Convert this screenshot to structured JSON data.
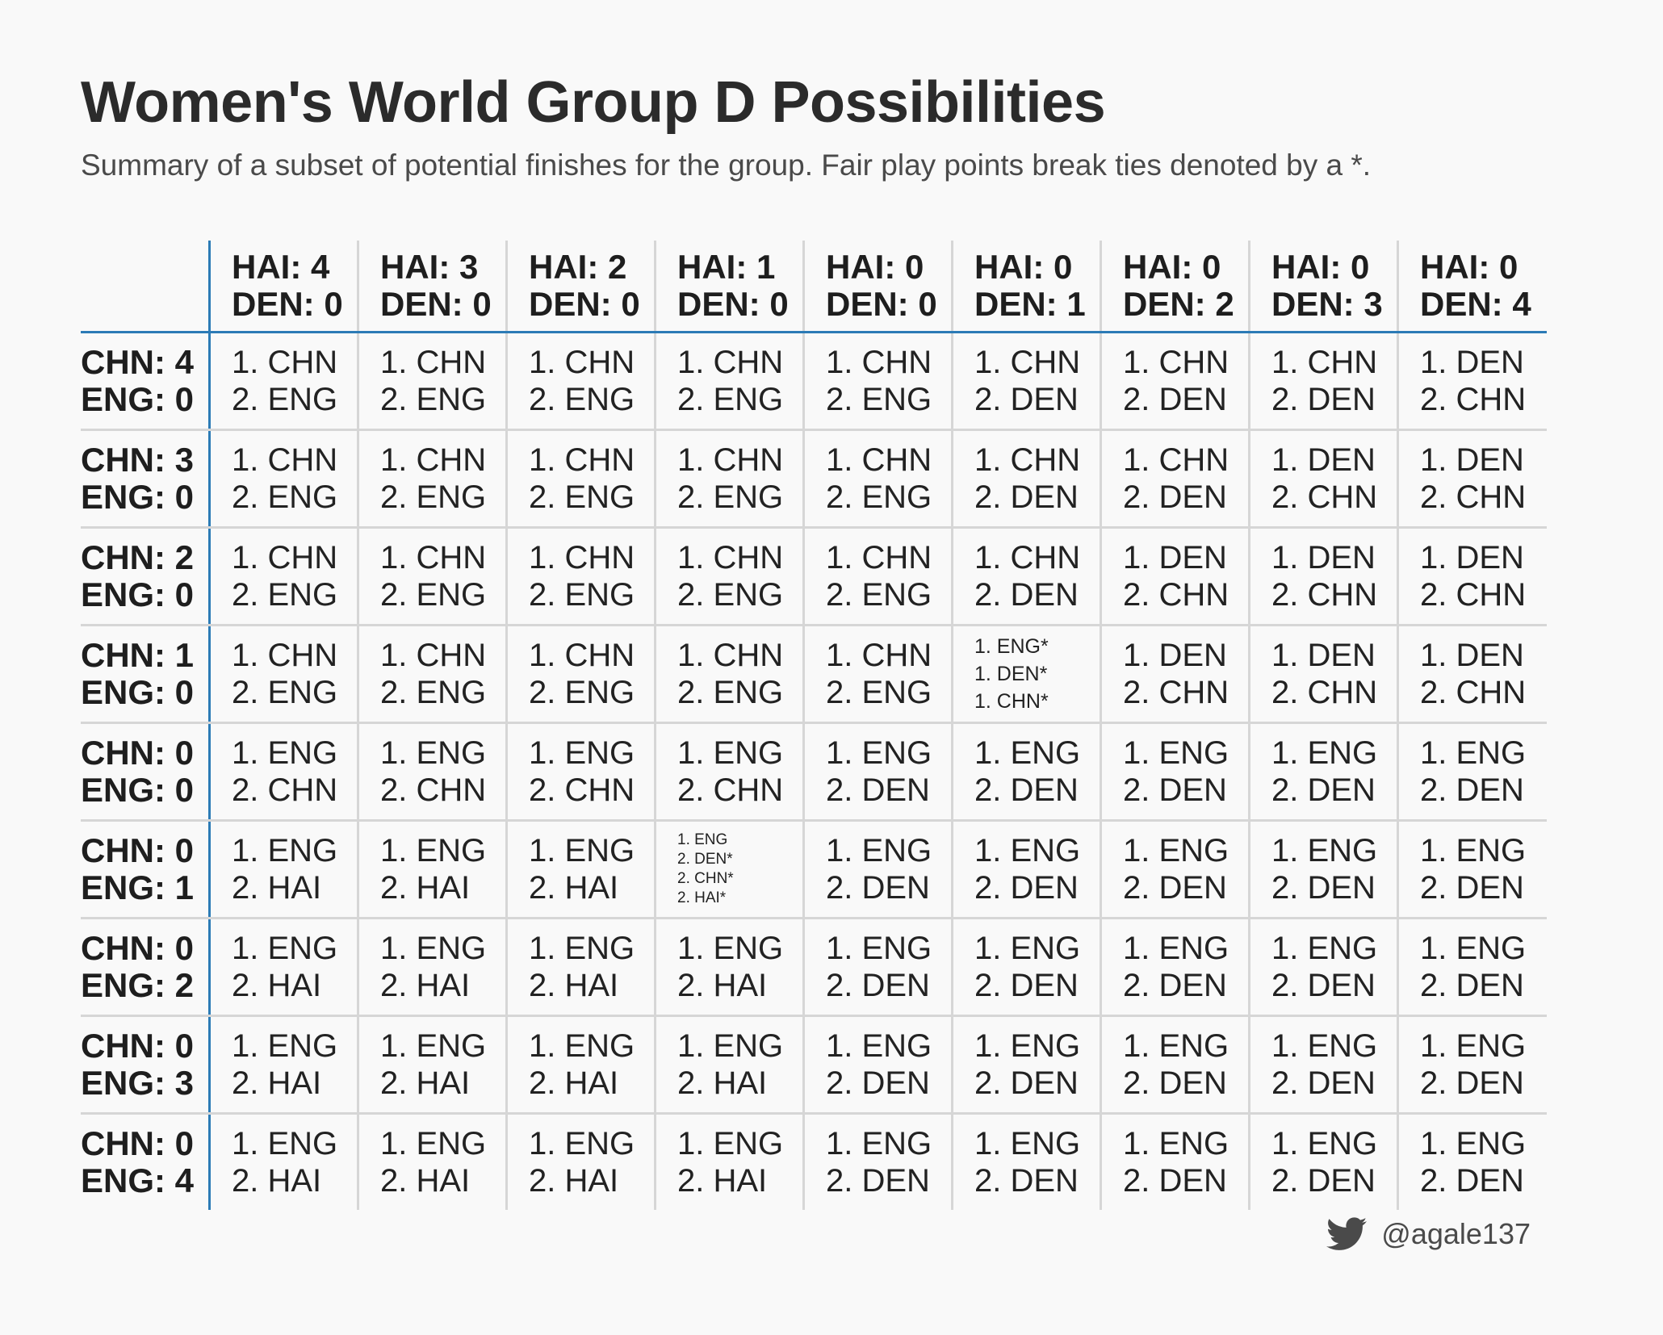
{
  "title": "Women's World Group D Possibilities",
  "subtitle": "Summary of a subset of potential finishes for the group. Fair play points break ties denoted by a *.",
  "footer": {
    "handle": "@agale137",
    "icon": "twitter-bird-icon"
  },
  "colors": {
    "axis_line": "#2c7bb6",
    "grid_line": "#d6d6d6",
    "background": "#f9f9f9"
  },
  "chart_data": {
    "type": "table",
    "columns": [
      [
        "HAI: 4",
        "DEN: 0"
      ],
      [
        "HAI: 3",
        "DEN: 0"
      ],
      [
        "HAI: 2",
        "DEN: 0"
      ],
      [
        "HAI: 1",
        "DEN: 0"
      ],
      [
        "HAI: 0",
        "DEN: 0"
      ],
      [
        "HAI: 0",
        "DEN: 1"
      ],
      [
        "HAI: 0",
        "DEN: 2"
      ],
      [
        "HAI: 0",
        "DEN: 3"
      ],
      [
        "HAI: 0",
        "DEN: 4"
      ]
    ],
    "rows": [
      [
        "CHN: 4",
        "ENG: 0"
      ],
      [
        "CHN: 3",
        "ENG: 0"
      ],
      [
        "CHN: 2",
        "ENG: 0"
      ],
      [
        "CHN: 1",
        "ENG: 0"
      ],
      [
        "CHN: 0",
        "ENG: 0"
      ],
      [
        "CHN: 0",
        "ENG: 1"
      ],
      [
        "CHN: 0",
        "ENG: 2"
      ],
      [
        "CHN: 0",
        "ENG: 3"
      ],
      [
        "CHN: 0",
        "ENG: 4"
      ]
    ],
    "cells": [
      [
        [
          "1. CHN",
          "2. ENG"
        ],
        [
          "1. CHN",
          "2. ENG"
        ],
        [
          "1. CHN",
          "2. ENG"
        ],
        [
          "1. CHN",
          "2. ENG"
        ],
        [
          "1. CHN",
          "2. ENG"
        ],
        [
          "1. CHN",
          "2. DEN"
        ],
        [
          "1. CHN",
          "2. DEN"
        ],
        [
          "1. CHN",
          "2. DEN"
        ],
        [
          "1. DEN",
          "2. CHN"
        ]
      ],
      [
        [
          "1. CHN",
          "2. ENG"
        ],
        [
          "1. CHN",
          "2. ENG"
        ],
        [
          "1. CHN",
          "2. ENG"
        ],
        [
          "1. CHN",
          "2. ENG"
        ],
        [
          "1. CHN",
          "2. ENG"
        ],
        [
          "1. CHN",
          "2. DEN"
        ],
        [
          "1. CHN",
          "2. DEN"
        ],
        [
          "1. DEN",
          "2. CHN"
        ],
        [
          "1. DEN",
          "2. CHN"
        ]
      ],
      [
        [
          "1. CHN",
          "2. ENG"
        ],
        [
          "1. CHN",
          "2. ENG"
        ],
        [
          "1. CHN",
          "2. ENG"
        ],
        [
          "1. CHN",
          "2. ENG"
        ],
        [
          "1. CHN",
          "2. ENG"
        ],
        [
          "1. CHN",
          "2. DEN"
        ],
        [
          "1. DEN",
          "2. CHN"
        ],
        [
          "1. DEN",
          "2. CHN"
        ],
        [
          "1. DEN",
          "2. CHN"
        ]
      ],
      [
        [
          "1. CHN",
          "2. ENG"
        ],
        [
          "1. CHN",
          "2. ENG"
        ],
        [
          "1. CHN",
          "2. ENG"
        ],
        [
          "1. CHN",
          "2. ENG"
        ],
        [
          "1. CHN",
          "2. ENG"
        ],
        [
          "1. ENG*",
          "1. DEN*",
          "1. CHN*"
        ],
        [
          "1. DEN",
          "2. CHN"
        ],
        [
          "1. DEN",
          "2. CHN"
        ],
        [
          "1. DEN",
          "2. CHN"
        ]
      ],
      [
        [
          "1. ENG",
          "2. CHN"
        ],
        [
          "1. ENG",
          "2. CHN"
        ],
        [
          "1. ENG",
          "2. CHN"
        ],
        [
          "1. ENG",
          "2. CHN"
        ],
        [
          "1. ENG",
          "2. DEN"
        ],
        [
          "1. ENG",
          "2. DEN"
        ],
        [
          "1. ENG",
          "2. DEN"
        ],
        [
          "1. ENG",
          "2. DEN"
        ],
        [
          "1. ENG",
          "2. DEN"
        ]
      ],
      [
        [
          "1. ENG",
          "2. HAI"
        ],
        [
          "1. ENG",
          "2. HAI"
        ],
        [
          "1. ENG",
          "2. HAI"
        ],
        [
          "1. ENG",
          "2. DEN*",
          "2. CHN*",
          "2. HAI*"
        ],
        [
          "1. ENG",
          "2. DEN"
        ],
        [
          "1. ENG",
          "2. DEN"
        ],
        [
          "1. ENG",
          "2. DEN"
        ],
        [
          "1. ENG",
          "2. DEN"
        ],
        [
          "1. ENG",
          "2. DEN"
        ]
      ],
      [
        [
          "1. ENG",
          "2. HAI"
        ],
        [
          "1. ENG",
          "2. HAI"
        ],
        [
          "1. ENG",
          "2. HAI"
        ],
        [
          "1. ENG",
          "2. HAI"
        ],
        [
          "1. ENG",
          "2. DEN"
        ],
        [
          "1. ENG",
          "2. DEN"
        ],
        [
          "1. ENG",
          "2. DEN"
        ],
        [
          "1. ENG",
          "2. DEN"
        ],
        [
          "1. ENG",
          "2. DEN"
        ]
      ],
      [
        [
          "1. ENG",
          "2. HAI"
        ],
        [
          "1. ENG",
          "2. HAI"
        ],
        [
          "1. ENG",
          "2. HAI"
        ],
        [
          "1. ENG",
          "2. HAI"
        ],
        [
          "1. ENG",
          "2. DEN"
        ],
        [
          "1. ENG",
          "2. DEN"
        ],
        [
          "1. ENG",
          "2. DEN"
        ],
        [
          "1. ENG",
          "2. DEN"
        ],
        [
          "1. ENG",
          "2. DEN"
        ]
      ],
      [
        [
          "1. ENG",
          "2. HAI"
        ],
        [
          "1. ENG",
          "2. HAI"
        ],
        [
          "1. ENG",
          "2. HAI"
        ],
        [
          "1. ENG",
          "2. HAI"
        ],
        [
          "1. ENG",
          "2. DEN"
        ],
        [
          "1. ENG",
          "2. DEN"
        ],
        [
          "1. ENG",
          "2. DEN"
        ],
        [
          "1. ENG",
          "2. DEN"
        ],
        [
          "1. ENG",
          "2. DEN"
        ]
      ]
    ]
  }
}
